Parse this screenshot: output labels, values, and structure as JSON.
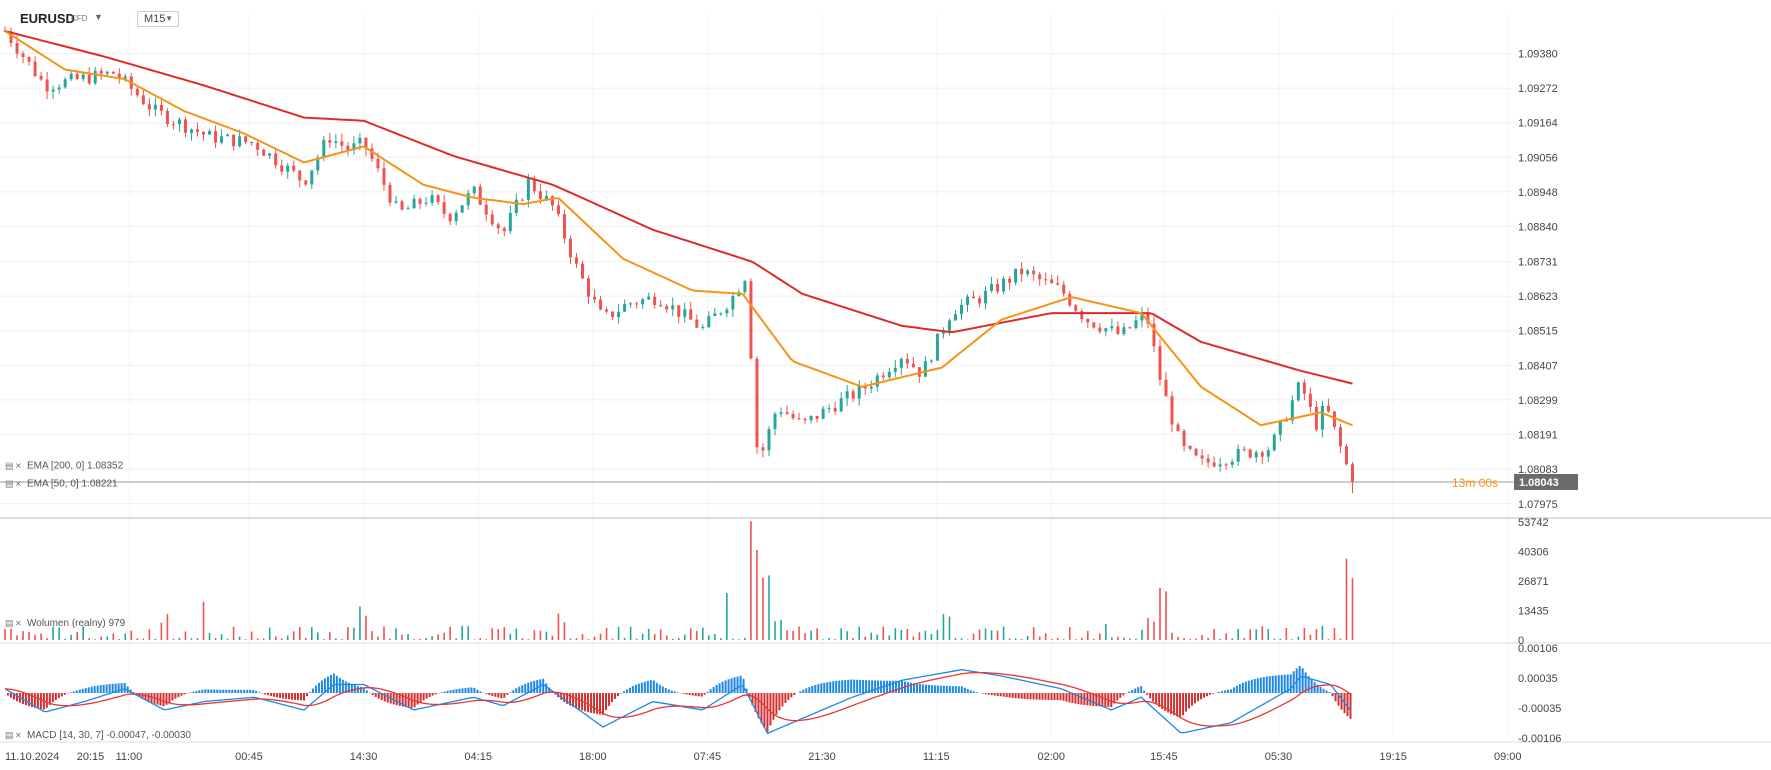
{
  "toolbar": {
    "symbol": "EURUSD",
    "instrument_type": "CFD",
    "timeframe": "M15",
    "caret_icon": "caret-down-icon"
  },
  "colors": {
    "bull": "#26a69a",
    "bear": "#ef5350",
    "ema200": "#dd2b2b",
    "ema50": "#f59416",
    "macd_line": "#1e88e5",
    "signal_line": "#e53935",
    "hist_pos": "#1e88e5",
    "hist_neg": "#d32f2f",
    "countdown": "#f59416"
  },
  "chart_data": [
    {
      "type": "candlestick",
      "y_ticks": [
        "1.09380",
        "1.09272",
        "1.09164",
        "1.09056",
        "1.08948",
        "1.08840",
        "1.08731",
        "1.08623",
        "1.08515",
        "1.08407",
        "1.08299",
        "1.08191",
        "1.08083",
        "1.07975"
      ],
      "ylim": [
        1.0794,
        1.095
      ],
      "x_ticks": [
        "11.10.2024",
        "20:15",
        "11:00",
        "00:45",
        "14:30",
        "04:15",
        "18:00",
        "07:45",
        "21:30",
        "11:15",
        "02:00",
        "15:45",
        "05:30",
        "19:15",
        "09:00"
      ],
      "current_price": "1.08043",
      "countdown": "13m 00s",
      "price_path": [
        {
          "t": 0,
          "v": 1.0945
        },
        {
          "t": 40,
          "v": 1.0928
        },
        {
          "t": 110,
          "v": 1.0932
        },
        {
          "t": 150,
          "v": 1.092
        },
        {
          "t": 205,
          "v": 1.0912
        },
        {
          "t": 250,
          "v": 1.091
        },
        {
          "t": 300,
          "v": 1.0898
        },
        {
          "t": 325,
          "v": 1.0912
        },
        {
          "t": 345,
          "v": 1.0908
        },
        {
          "t": 360,
          "v": 1.091
        },
        {
          "t": 395,
          "v": 1.0888
        },
        {
          "t": 425,
          "v": 1.0893
        },
        {
          "t": 445,
          "v": 1.0887
        },
        {
          "t": 470,
          "v": 1.0895
        },
        {
          "t": 500,
          "v": 1.0882
        },
        {
          "t": 525,
          "v": 1.0898
        },
        {
          "t": 550,
          "v": 1.089
        },
        {
          "t": 575,
          "v": 1.087
        },
        {
          "t": 600,
          "v": 1.0855
        },
        {
          "t": 625,
          "v": 1.086
        },
        {
          "t": 655,
          "v": 1.0862
        },
        {
          "t": 700,
          "v": 1.0852
        },
        {
          "t": 730,
          "v": 1.0862
        },
        {
          "t": 745,
          "v": 1.087
        },
        {
          "t": 752,
          "v": 1.0818
        },
        {
          "t": 758,
          "v": 1.0812
        },
        {
          "t": 775,
          "v": 1.0828
        },
        {
          "t": 800,
          "v": 1.0822
        },
        {
          "t": 830,
          "v": 1.0828
        },
        {
          "t": 860,
          "v": 1.0833
        },
        {
          "t": 900,
          "v": 1.0844
        },
        {
          "t": 920,
          "v": 1.0838
        },
        {
          "t": 950,
          "v": 1.0858
        },
        {
          "t": 980,
          "v": 1.0862
        },
        {
          "t": 1020,
          "v": 1.087
        },
        {
          "t": 1060,
          "v": 1.0864
        },
        {
          "t": 1085,
          "v": 1.0855
        },
        {
          "t": 1120,
          "v": 1.085
        },
        {
          "t": 1145,
          "v": 1.0857
        },
        {
          "t": 1160,
          "v": 1.0835
        },
        {
          "t": 1180,
          "v": 1.0815
        },
        {
          "t": 1200,
          "v": 1.081
        },
        {
          "t": 1240,
          "v": 1.0813
        },
        {
          "t": 1270,
          "v": 1.0815
        },
        {
          "t": 1300,
          "v": 1.0835
        },
        {
          "t": 1315,
          "v": 1.0822
        },
        {
          "t": 1325,
          "v": 1.0828
        },
        {
          "t": 1340,
          "v": 1.0815
        },
        {
          "t": 1352,
          "v": 1.0804
        }
      ],
      "ema200": {
        "label": "EMA [200, 0] 1.08352",
        "points": [
          {
            "t": 0,
            "v": 1.0945
          },
          {
            "t": 100,
            "v": 1.0937
          },
          {
            "t": 200,
            "v": 1.0928
          },
          {
            "t": 300,
            "v": 1.0918
          },
          {
            "t": 360,
            "v": 1.0917
          },
          {
            "t": 450,
            "v": 1.0906
          },
          {
            "t": 550,
            "v": 1.0897
          },
          {
            "t": 650,
            "v": 1.0883
          },
          {
            "t": 750,
            "v": 1.0873
          },
          {
            "t": 800,
            "v": 1.0863
          },
          {
            "t": 900,
            "v": 1.0853
          },
          {
            "t": 950,
            "v": 1.0851
          },
          {
            "t": 1050,
            "v": 1.0857
          },
          {
            "t": 1150,
            "v": 1.0857
          },
          {
            "t": 1200,
            "v": 1.0848
          },
          {
            "t": 1300,
            "v": 1.0839
          },
          {
            "t": 1352,
            "v": 1.0835
          }
        ]
      },
      "ema50": {
        "label": "EMA [50, 0] 1.08221",
        "points": [
          {
            "t": 0,
            "v": 1.0945
          },
          {
            "t": 60,
            "v": 1.0933
          },
          {
            "t": 120,
            "v": 1.093
          },
          {
            "t": 180,
            "v": 1.092
          },
          {
            "t": 240,
            "v": 1.0913
          },
          {
            "t": 300,
            "v": 1.0904
          },
          {
            "t": 360,
            "v": 1.0909
          },
          {
            "t": 420,
            "v": 1.0897
          },
          {
            "t": 470,
            "v": 1.0893
          },
          {
            "t": 520,
            "v": 1.0891
          },
          {
            "t": 555,
            "v": 1.0893
          },
          {
            "t": 620,
            "v": 1.0874
          },
          {
            "t": 690,
            "v": 1.0864
          },
          {
            "t": 740,
            "v": 1.0863
          },
          {
            "t": 790,
            "v": 1.0842
          },
          {
            "t": 860,
            "v": 1.0834
          },
          {
            "t": 940,
            "v": 1.084
          },
          {
            "t": 1000,
            "v": 1.0855
          },
          {
            "t": 1070,
            "v": 1.0862
          },
          {
            "t": 1140,
            "v": 1.0857
          },
          {
            "t": 1200,
            "v": 1.0834
          },
          {
            "t": 1260,
            "v": 1.0822
          },
          {
            "t": 1320,
            "v": 1.0826
          },
          {
            "t": 1352,
            "v": 1.0822
          }
        ]
      }
    },
    {
      "type": "bar",
      "name": "Wolumen (realny)",
      "label": "Wolumen  (realny) 979",
      "y_ticks": [
        "53742",
        "40306",
        "26871",
        "13435",
        "0"
      ],
      "ylim": [
        0,
        53742
      ],
      "spikes": [
        {
          "t": 160,
          "v": 12000
        },
        {
          "t": 200,
          "v": 18000
        },
        {
          "t": 360,
          "v": 16000
        },
        {
          "t": 560,
          "v": 13000
        },
        {
          "t": 725,
          "v": 16000
        },
        {
          "t": 748,
          "v": 51000
        },
        {
          "t": 752,
          "v": 38000
        },
        {
          "t": 765,
          "v": 22000
        },
        {
          "t": 945,
          "v": 16000
        },
        {
          "t": 1160,
          "v": 16000
        },
        {
          "t": 1348,
          "v": 26000
        },
        {
          "t": 1352,
          "v": 14000
        }
      ]
    },
    {
      "type": "line",
      "name": "MACD",
      "label": "MACD [14, 30, 7] -0.00047, -0.00030",
      "y_ticks": [
        "0.00106",
        "0.00035",
        "-0.00035",
        "-0.00106"
      ],
      "ylim": [
        -0.00106,
        0.00106
      ],
      "macd_path": [
        {
          "t": 0,
          "v": 0.0001
        },
        {
          "t": 40,
          "v": -0.00045
        },
        {
          "t": 80,
          "v": -0.0002
        },
        {
          "t": 120,
          "v": 0.0001
        },
        {
          "t": 160,
          "v": -0.0004
        },
        {
          "t": 200,
          "v": -0.0002
        },
        {
          "t": 250,
          "v": -0.0001
        },
        {
          "t": 300,
          "v": -0.0004
        },
        {
          "t": 330,
          "v": 0.0002
        },
        {
          "t": 360,
          "v": 0.0002
        },
        {
          "t": 410,
          "v": -0.0004
        },
        {
          "t": 470,
          "v": -0.0001
        },
        {
          "t": 500,
          "v": -0.0003
        },
        {
          "t": 540,
          "v": 0.0002
        },
        {
          "t": 600,
          "v": -0.0008
        },
        {
          "t": 650,
          "v": -0.0002
        },
        {
          "t": 700,
          "v": -0.0004
        },
        {
          "t": 740,
          "v": 0.0002
        },
        {
          "t": 765,
          "v": -0.00095
        },
        {
          "t": 800,
          "v": -0.0006
        },
        {
          "t": 850,
          "v": -0.0001
        },
        {
          "t": 900,
          "v": 0.0003
        },
        {
          "t": 960,
          "v": 0.00055
        },
        {
          "t": 1000,
          "v": 0.0004
        },
        {
          "t": 1060,
          "v": 0.0001
        },
        {
          "t": 1110,
          "v": -0.0004
        },
        {
          "t": 1140,
          "v": -0.0001
        },
        {
          "t": 1180,
          "v": -0.00095
        },
        {
          "t": 1230,
          "v": -0.0007
        },
        {
          "t": 1290,
          "v": 0.0001
        },
        {
          "t": 1300,
          "v": 0.0004
        },
        {
          "t": 1330,
          "v": 0.0002
        },
        {
          "t": 1352,
          "v": -0.00047
        }
      ]
    }
  ],
  "legend": {
    "menu_icon": "menu-icon",
    "close_icon": "close-icon"
  }
}
